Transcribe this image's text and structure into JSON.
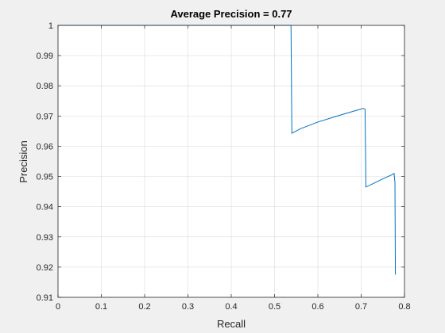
{
  "chart_data": {
    "type": "line",
    "title": "Average Precision = 0.77",
    "xlabel": "Recall",
    "ylabel": "Precision",
    "xlim": [
      0,
      0.8
    ],
    "ylim": [
      0.91,
      1
    ],
    "xticks": [
      "0",
      "0.1",
      "0.2",
      "0.3",
      "0.4",
      "0.5",
      "0.6",
      "0.7",
      "0.8"
    ],
    "yticks": [
      "0.91",
      "0.92",
      "0.93",
      "0.94",
      "0.95",
      "0.96",
      "0.97",
      "0.98",
      "0.99",
      "1"
    ],
    "grid": true,
    "series": [
      {
        "color": "#0072bd",
        "x": [
          0,
          0.538,
          0.54,
          0.56,
          0.6,
          0.64,
          0.68,
          0.705,
          0.709,
          0.711,
          0.73,
          0.75,
          0.77,
          0.776,
          0.778,
          0.779
        ],
        "y": [
          1,
          1,
          0.9643,
          0.9658,
          0.968,
          0.9698,
          0.9715,
          0.9725,
          0.9723,
          0.9465,
          0.9478,
          0.9492,
          0.9505,
          0.951,
          0.948,
          0.9175
        ]
      }
    ]
  }
}
